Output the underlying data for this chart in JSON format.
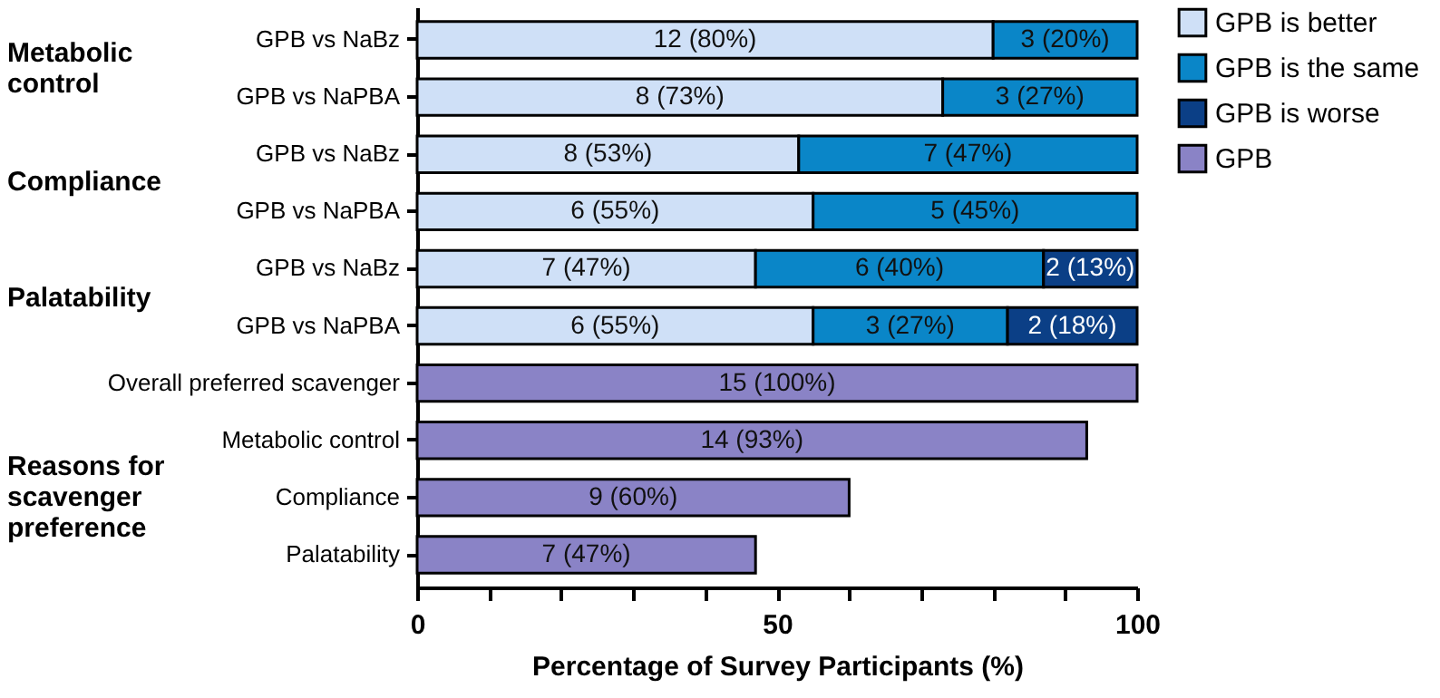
{
  "chart_data": {
    "type": "bar",
    "orientation": "horizontal",
    "stacked": true,
    "xlabel": "Percentage of Survey Participants (%)",
    "categories": [
      "GPB vs NaBz",
      "GPB vs NaPBA",
      "GPB vs NaBz",
      "GPB vs NaPBA",
      "GPB vs NaBz",
      "GPB vs NaPBA",
      "Overall preferred scavenger",
      "Metabolic control",
      "Compliance",
      "Palatability"
    ],
    "series": [
      {
        "name": "GPB is better",
        "color": "#cfe0f7",
        "values": [
          80,
          73,
          53,
          55,
          47,
          55,
          null,
          null,
          null,
          null
        ],
        "value_labels": [
          "12 (80%)",
          "8 (73%)",
          "8 (53%)",
          "6 (55%)",
          "7 (47%)",
          "6 (55%)",
          null,
          null,
          null,
          null
        ]
      },
      {
        "name": "GPB is the same",
        "color": "#0a86c8",
        "values": [
          20,
          27,
          47,
          45,
          40,
          27,
          null,
          null,
          null,
          null
        ],
        "value_labels": [
          "3 (20%)",
          "3 (27%)",
          "7 (47%)",
          "5 (45%)",
          "6 (40%)",
          "3 (27%)",
          null,
          null,
          null,
          null
        ]
      },
      {
        "name": "GPB is worse",
        "color": "#0b3f86",
        "values": [
          null,
          null,
          null,
          null,
          13,
          18,
          null,
          null,
          null,
          null
        ],
        "value_labels": [
          null,
          null,
          null,
          null,
          "2 (13%)",
          "2 (18%)",
          null,
          null,
          null,
          null
        ]
      },
      {
        "name": "GPB",
        "color": "#8a83c6",
        "values": [
          null,
          null,
          null,
          null,
          null,
          null,
          100,
          93,
          60,
          47
        ],
        "value_labels": [
          null,
          null,
          null,
          null,
          null,
          null,
          "15 (100%)",
          "14 (93%)",
          "9 (60%)",
          "7 (47%)"
        ]
      }
    ],
    "xlim": [
      0,
      100
    ],
    "xticks": [
      0,
      {
        "value": 10,
        "label": null
      },
      {
        "value": 20,
        "label": null
      },
      {
        "value": 30,
        "label": null
      },
      {
        "value": 40,
        "label": null
      },
      50,
      {
        "value": 60,
        "label": null
      },
      {
        "value": 70,
        "label": null
      },
      {
        "value": 80,
        "label": null
      },
      {
        "value": 90,
        "label": null
      },
      100
    ],
    "annotations": [
      "Metabolic control",
      "Compliance",
      "Palatability",
      "Reasons for scavenger preference"
    ],
    "legend": "top right",
    "grid": false
  }
}
